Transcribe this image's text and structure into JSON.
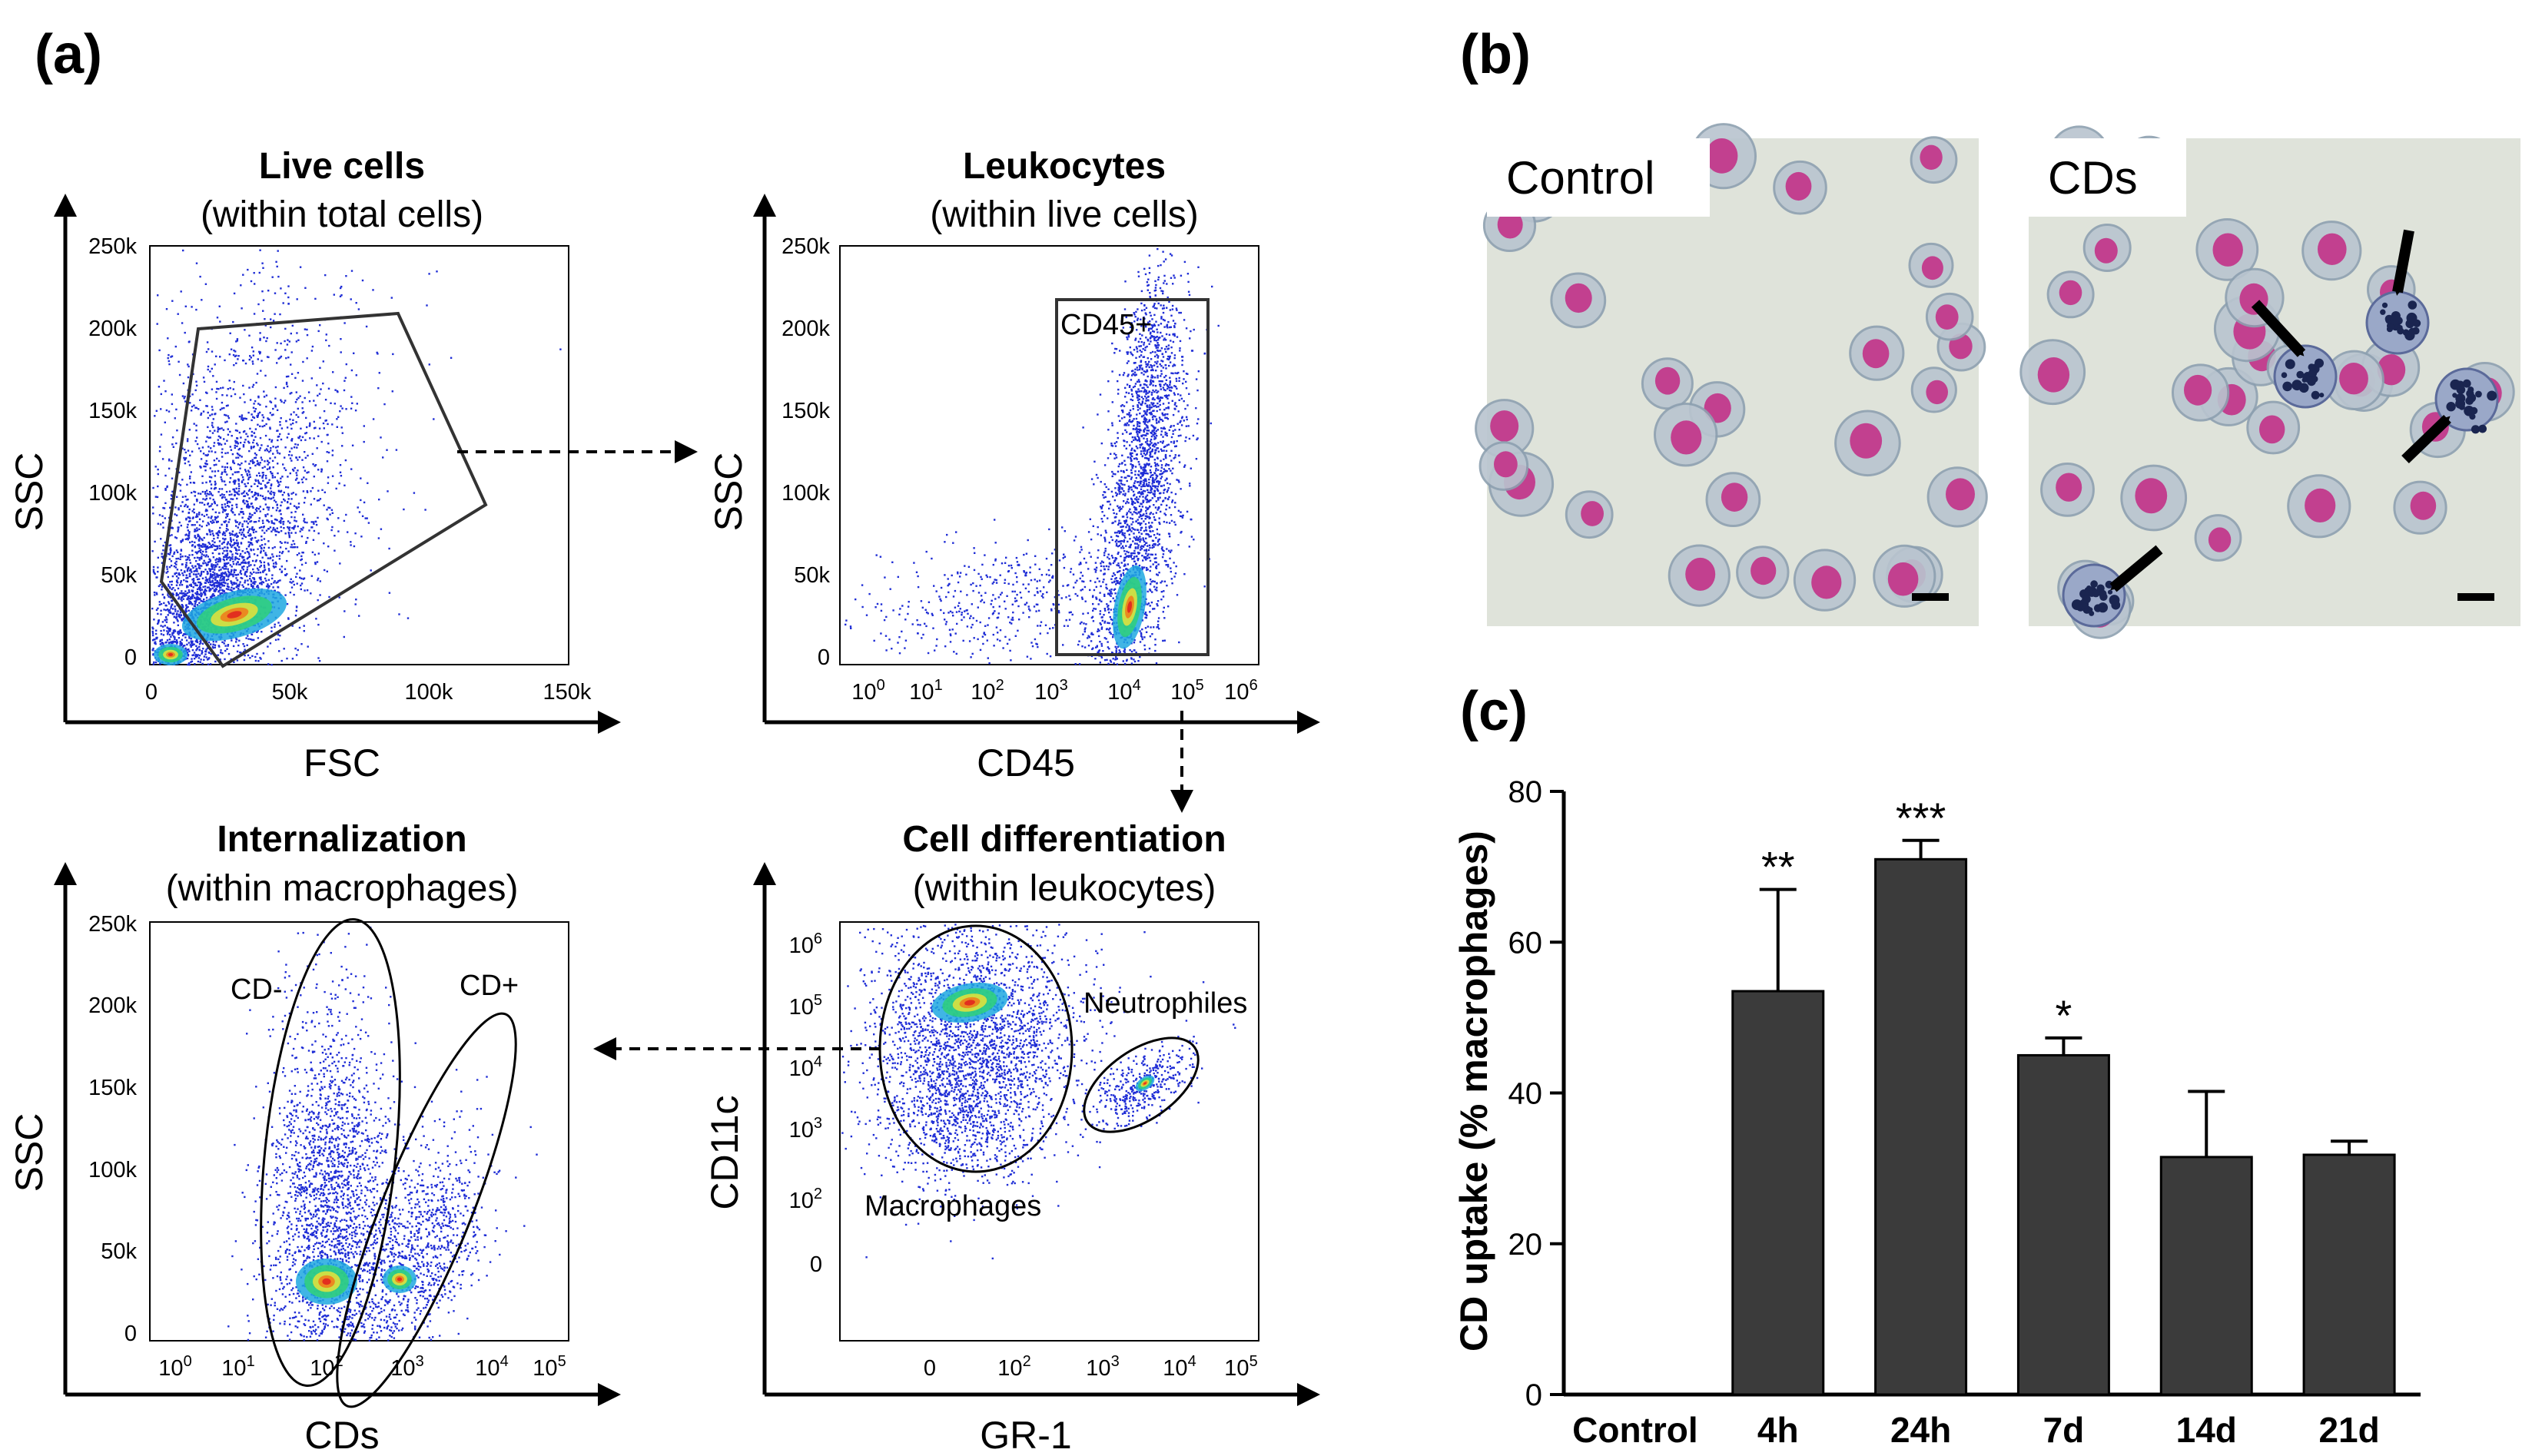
{
  "panels": {
    "a": "(a)",
    "b": "(b)",
    "c": "(c)"
  },
  "flow": {
    "plot1": {
      "title": "Live cells",
      "subtitle": "(within total cells)",
      "xlabel": "FSC",
      "ylabel": "SSC",
      "yticks": [
        "250k",
        "200k",
        "150k",
        "100k",
        "50k",
        "0"
      ],
      "xticks": [
        "0",
        "50k",
        "100k",
        "150k"
      ]
    },
    "plot2": {
      "title": "Leukocytes",
      "subtitle": "(within live cells)",
      "xlabel": "CD45",
      "ylabel": "SSC",
      "yticks": [
        "250k",
        "200k",
        "150k",
        "100k",
        "50k",
        "0"
      ],
      "xticks_base": "10",
      "xticks_exp": [
        "0",
        "1",
        "2",
        "3",
        "4",
        "5",
        "6"
      ],
      "gate": "CD45+"
    },
    "plot3": {
      "title": "Cell differentiation",
      "subtitle": "(within leukocytes)",
      "xlabel": "GR-1",
      "ylabel": "CD11c",
      "yticks_base": "10",
      "yticks_exp": [
        "6",
        "5",
        "4",
        "3",
        "2"
      ],
      "ytick_zero": "0",
      "xticks_zero": "0",
      "xticks_base": "10",
      "xticks_exp": [
        "2",
        "3",
        "4",
        "5"
      ],
      "gate1": "Macrophages",
      "gate2": "Neutrophiles"
    },
    "plot4": {
      "title": "Internalization",
      "subtitle": "(within macrophages)",
      "xlabel": "CDs",
      "ylabel": "SSC",
      "yticks": [
        "250k",
        "200k",
        "150k",
        "100k",
        "50k",
        "0"
      ],
      "xticks_base": "10",
      "xticks_exp": [
        "0",
        "1",
        "2",
        "3",
        "4",
        "5"
      ],
      "gate1": "CD-",
      "gate2": "CD+"
    }
  },
  "micrographs": {
    "left": "Control",
    "right": "CDs"
  },
  "chart_data": {
    "type": "bar",
    "title": "",
    "xlabel": "",
    "ylabel": "CD uptake (% macrophages)",
    "categories": [
      "Control",
      "4h",
      "24h",
      "7d",
      "14d",
      "21d"
    ],
    "values": [
      0,
      53.5,
      71,
      45,
      31.5,
      31.8
    ],
    "errors": [
      0,
      13.5,
      2.5,
      2.3,
      8.7,
      1.8
    ],
    "significance": [
      "",
      "**",
      "***",
      "*",
      "",
      ""
    ],
    "ylim": [
      0,
      80
    ],
    "yticks": [
      "0",
      "20",
      "40",
      "60",
      "80"
    ],
    "bar_color": "#3b3b3b"
  }
}
